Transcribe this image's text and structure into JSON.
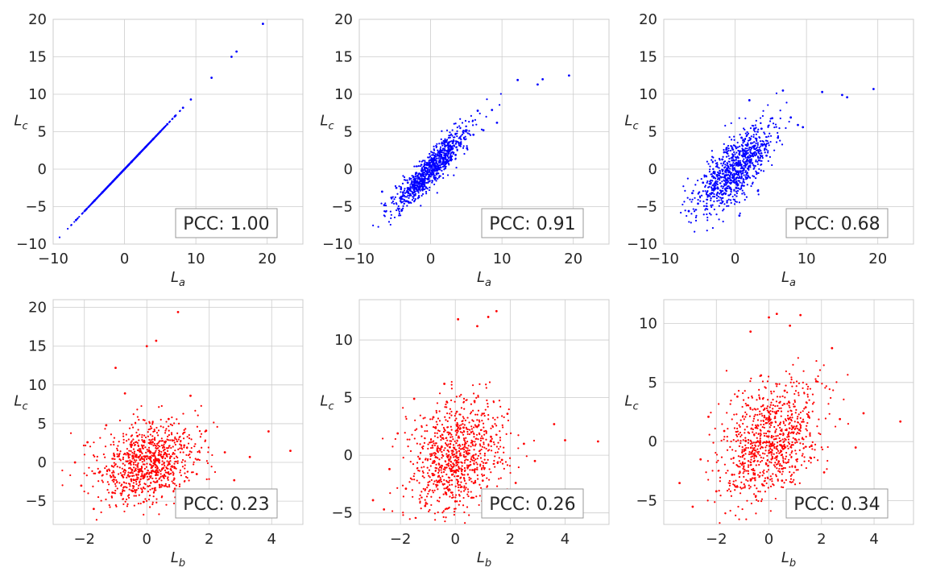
{
  "chart_data": [
    {
      "type": "scatter",
      "title": "",
      "xlabel": "L_a",
      "ylabel": "L_c",
      "xlim": [
        -10,
        25
      ],
      "ylim": [
        -10,
        20
      ],
      "xticks": [
        -10,
        0,
        10,
        20
      ],
      "yticks": [
        -10,
        -5,
        0,
        5,
        10,
        15,
        20
      ],
      "grid": true,
      "point_color": "#0000ff",
      "annotation": "PCC: 1.00",
      "annotation_position": "bottom-right",
      "points": [
        [
          -6.8,
          -6.8
        ],
        [
          -5.5,
          -5.5
        ],
        [
          -4.2,
          -4.2
        ],
        [
          -3.1,
          -3.1
        ],
        [
          -2.0,
          -2.0
        ],
        [
          -1.0,
          -1.0
        ],
        [
          0.0,
          0.0
        ],
        [
          1.0,
          1.0
        ],
        [
          2.1,
          2.1
        ],
        [
          3.0,
          3.0
        ],
        [
          4.0,
          4.0
        ],
        [
          5.0,
          5.0
        ],
        [
          6.0,
          6.0
        ],
        [
          7.1,
          7.1
        ],
        [
          8.2,
          8.2
        ],
        [
          9.3,
          9.3
        ],
        [
          12.2,
          12.2
        ],
        [
          15.0,
          15.0
        ],
        [
          15.7,
          15.7
        ],
        [
          19.4,
          19.4
        ]
      ]
    },
    {
      "type": "scatter",
      "title": "",
      "xlabel": "L_a",
      "ylabel": "L_c",
      "xlim": [
        -10,
        25
      ],
      "ylim": [
        -10,
        20
      ],
      "xticks": [
        -10,
        0,
        10,
        20
      ],
      "yticks": [
        -10,
        -5,
        0,
        5,
        10,
        15,
        20
      ],
      "grid": true,
      "point_color": "#0000ff",
      "annotation": "PCC: 0.91",
      "annotation_position": "bottom-right",
      "points": [
        [
          -6.5,
          -4.8
        ],
        [
          -6.8,
          -3.0
        ],
        [
          -5.5,
          -3.8
        ],
        [
          -4.8,
          -2.5
        ],
        [
          -3.9,
          -3.6
        ],
        [
          -3.2,
          -1.8
        ],
        [
          -2.5,
          -2.2
        ],
        [
          -2.0,
          -0.5
        ],
        [
          -1.4,
          -1.6
        ],
        [
          -0.8,
          0.2
        ],
        [
          -0.2,
          -0.8
        ],
        [
          0.3,
          0.9
        ],
        [
          0.9,
          -0.2
        ],
        [
          1.5,
          1.7
        ],
        [
          2.2,
          0.8
        ],
        [
          2.8,
          2.6
        ],
        [
          3.5,
          1.9
        ],
        [
          4.2,
          3.5
        ],
        [
          5.1,
          2.8
        ],
        [
          6.0,
          4.6
        ],
        [
          6.6,
          7.8
        ],
        [
          7.4,
          5.2
        ],
        [
          8.6,
          7.9
        ],
        [
          9.3,
          6.2
        ],
        [
          12.2,
          11.9
        ],
        [
          15.0,
          11.3
        ],
        [
          15.7,
          12.0
        ],
        [
          19.4,
          12.5
        ]
      ]
    },
    {
      "type": "scatter",
      "title": "",
      "xlabel": "L_a",
      "ylabel": "L_c",
      "xlim": [
        -10,
        25
      ],
      "ylim": [
        -10,
        20
      ],
      "xticks": [
        -10,
        0,
        10,
        20
      ],
      "yticks": [
        -10,
        -5,
        0,
        5,
        10,
        15,
        20
      ],
      "grid": true,
      "point_color": "#0000ff",
      "annotation": "PCC: 0.68",
      "annotation_position": "bottom-right",
      "points": [
        [
          -6.5,
          -5.6
        ],
        [
          -6.0,
          -3.2
        ],
        [
          -5.2,
          -4.6
        ],
        [
          -4.5,
          -1.8
        ],
        [
          -3.8,
          -3.5
        ],
        [
          -3.0,
          -0.5
        ],
        [
          -2.4,
          -2.6
        ],
        [
          -1.8,
          1.3
        ],
        [
          -1.0,
          -1.2
        ],
        [
          -0.4,
          2.8
        ],
        [
          0.2,
          -0.3
        ],
        [
          0.6,
          -6.2
        ],
        [
          0.9,
          4.2
        ],
        [
          1.5,
          0.6
        ],
        [
          2.0,
          9.2
        ],
        [
          2.6,
          2.9
        ],
        [
          3.2,
          -2.9
        ],
        [
          3.7,
          5.4
        ],
        [
          4.4,
          1.8
        ],
        [
          5.2,
          6.8
        ],
        [
          6.0,
          4.2
        ],
        [
          6.7,
          10.5
        ],
        [
          7.8,
          6.9
        ],
        [
          8.8,
          5.9
        ],
        [
          9.5,
          5.6
        ],
        [
          12.2,
          10.3
        ],
        [
          15.0,
          9.9
        ],
        [
          15.7,
          9.6
        ],
        [
          19.4,
          10.7
        ]
      ]
    },
    {
      "type": "scatter",
      "title": "",
      "xlabel": "L_b",
      "ylabel": "L_c",
      "xlim": [
        -3,
        5
      ],
      "ylim": [
        -8,
        21
      ],
      "xticks": [
        -2,
        0,
        2,
        4
      ],
      "yticks": [
        -5,
        0,
        5,
        10,
        15,
        20
      ],
      "grid": true,
      "point_color": "#ff0000",
      "annotation": "PCC: 0.23",
      "annotation_position": "bottom-right",
      "points": [
        [
          -2.3,
          0.0
        ],
        [
          -2.1,
          -3.0
        ],
        [
          -1.9,
          2.6
        ],
        [
          -1.7,
          -6.0
        ],
        [
          -1.5,
          -1.2
        ],
        [
          -1.3,
          4.8
        ],
        [
          -1.1,
          -3.9
        ],
        [
          -1.0,
          12.2
        ],
        [
          -0.9,
          0.8
        ],
        [
          -0.7,
          8.9
        ],
        [
          -0.5,
          -2.2
        ],
        [
          -0.3,
          3.4
        ],
        [
          -0.1,
          -5.1
        ],
        [
          0.0,
          15.0
        ],
        [
          0.1,
          1.4
        ],
        [
          0.3,
          15.7
        ],
        [
          0.5,
          -0.8
        ],
        [
          0.7,
          5.6
        ],
        [
          0.9,
          -3.4
        ],
        [
          1.0,
          19.4
        ],
        [
          1.2,
          2.2
        ],
        [
          1.4,
          8.6
        ],
        [
          1.6,
          -1.5
        ],
        [
          1.9,
          4.1
        ],
        [
          2.2,
          -4.3
        ],
        [
          2.5,
          1.3
        ],
        [
          2.8,
          -2.3
        ],
        [
          3.3,
          0.7
        ],
        [
          3.9,
          4.0
        ],
        [
          4.6,
          1.5
        ]
      ]
    },
    {
      "type": "scatter",
      "title": "",
      "xlabel": "L_b",
      "ylabel": "L_c",
      "xlim": [
        -3.5,
        5.6
      ],
      "ylim": [
        -6,
        13.5
      ],
      "xticks": [
        -2,
        0,
        2,
        4
      ],
      "yticks": [
        -5,
        0,
        5,
        10
      ],
      "grid": true,
      "point_color": "#ff0000",
      "annotation": "PCC: 0.26",
      "annotation_position": "bottom-right",
      "points": [
        [
          -3.0,
          -3.9
        ],
        [
          -2.6,
          -4.7
        ],
        [
          -2.4,
          -1.2
        ],
        [
          -2.1,
          1.9
        ],
        [
          -1.8,
          -2.9
        ],
        [
          -1.5,
          4.9
        ],
        [
          -1.3,
          -0.3
        ],
        [
          -1.1,
          -4.4
        ],
        [
          -0.8,
          3.3
        ],
        [
          -0.6,
          -1.8
        ],
        [
          -0.4,
          6.2
        ],
        [
          -0.2,
          0.7
        ],
        [
          0.0,
          -4.0
        ],
        [
          0.1,
          11.8
        ],
        [
          0.3,
          2.4
        ],
        [
          0.5,
          -0.9
        ],
        [
          0.7,
          4.7
        ],
        [
          0.8,
          11.2
        ],
        [
          1.0,
          -2.2
        ],
        [
          1.2,
          12.0
        ],
        [
          1.3,
          1.6
        ],
        [
          1.5,
          12.5
        ],
        [
          1.7,
          -0.4
        ],
        [
          1.9,
          3.6
        ],
        [
          2.2,
          -2.4
        ],
        [
          2.5,
          1.0
        ],
        [
          2.9,
          -0.5
        ],
        [
          3.6,
          2.7
        ],
        [
          4.0,
          1.3
        ],
        [
          5.2,
          1.2
        ]
      ]
    },
    {
      "type": "scatter",
      "title": "",
      "xlabel": "L_b",
      "ylabel": "L_c",
      "xlim": [
        -4,
        5.5
      ],
      "ylim": [
        -7,
        12
      ],
      "xticks": [
        -2,
        0,
        2,
        4
      ],
      "yticks": [
        -5,
        0,
        5,
        10
      ],
      "grid": true,
      "point_color": "#ff0000",
      "annotation": "PCC: 0.34",
      "annotation_position": "bottom-right",
      "points": [
        [
          -3.4,
          -3.5
        ],
        [
          -2.9,
          -5.5
        ],
        [
          -2.6,
          -1.5
        ],
        [
          -2.3,
          2.1
        ],
        [
          -2.0,
          -4.2
        ],
        [
          -1.7,
          0.9
        ],
        [
          -1.4,
          -2.8
        ],
        [
          -1.2,
          3.8
        ],
        [
          -0.9,
          -0.7
        ],
        [
          -0.7,
          9.3
        ],
        [
          -0.5,
          -4.6
        ],
        [
          -0.3,
          5.6
        ],
        [
          -0.1,
          -1.9
        ],
        [
          0.0,
          10.5
        ],
        [
          0.1,
          1.6
        ],
        [
          0.3,
          10.8
        ],
        [
          0.5,
          -3.3
        ],
        [
          0.6,
          4.3
        ],
        [
          0.8,
          9.8
        ],
        [
          1.0,
          0.2
        ],
        [
          1.2,
          10.7
        ],
        [
          1.4,
          2.9
        ],
        [
          1.6,
          -1.4
        ],
        [
          1.8,
          5.1
        ],
        [
          2.1,
          -2.6
        ],
        [
          2.4,
          7.9
        ],
        [
          2.7,
          1.9
        ],
        [
          3.3,
          -0.5
        ],
        [
          3.6,
          2.4
        ],
        [
          5.0,
          1.7
        ]
      ]
    }
  ]
}
